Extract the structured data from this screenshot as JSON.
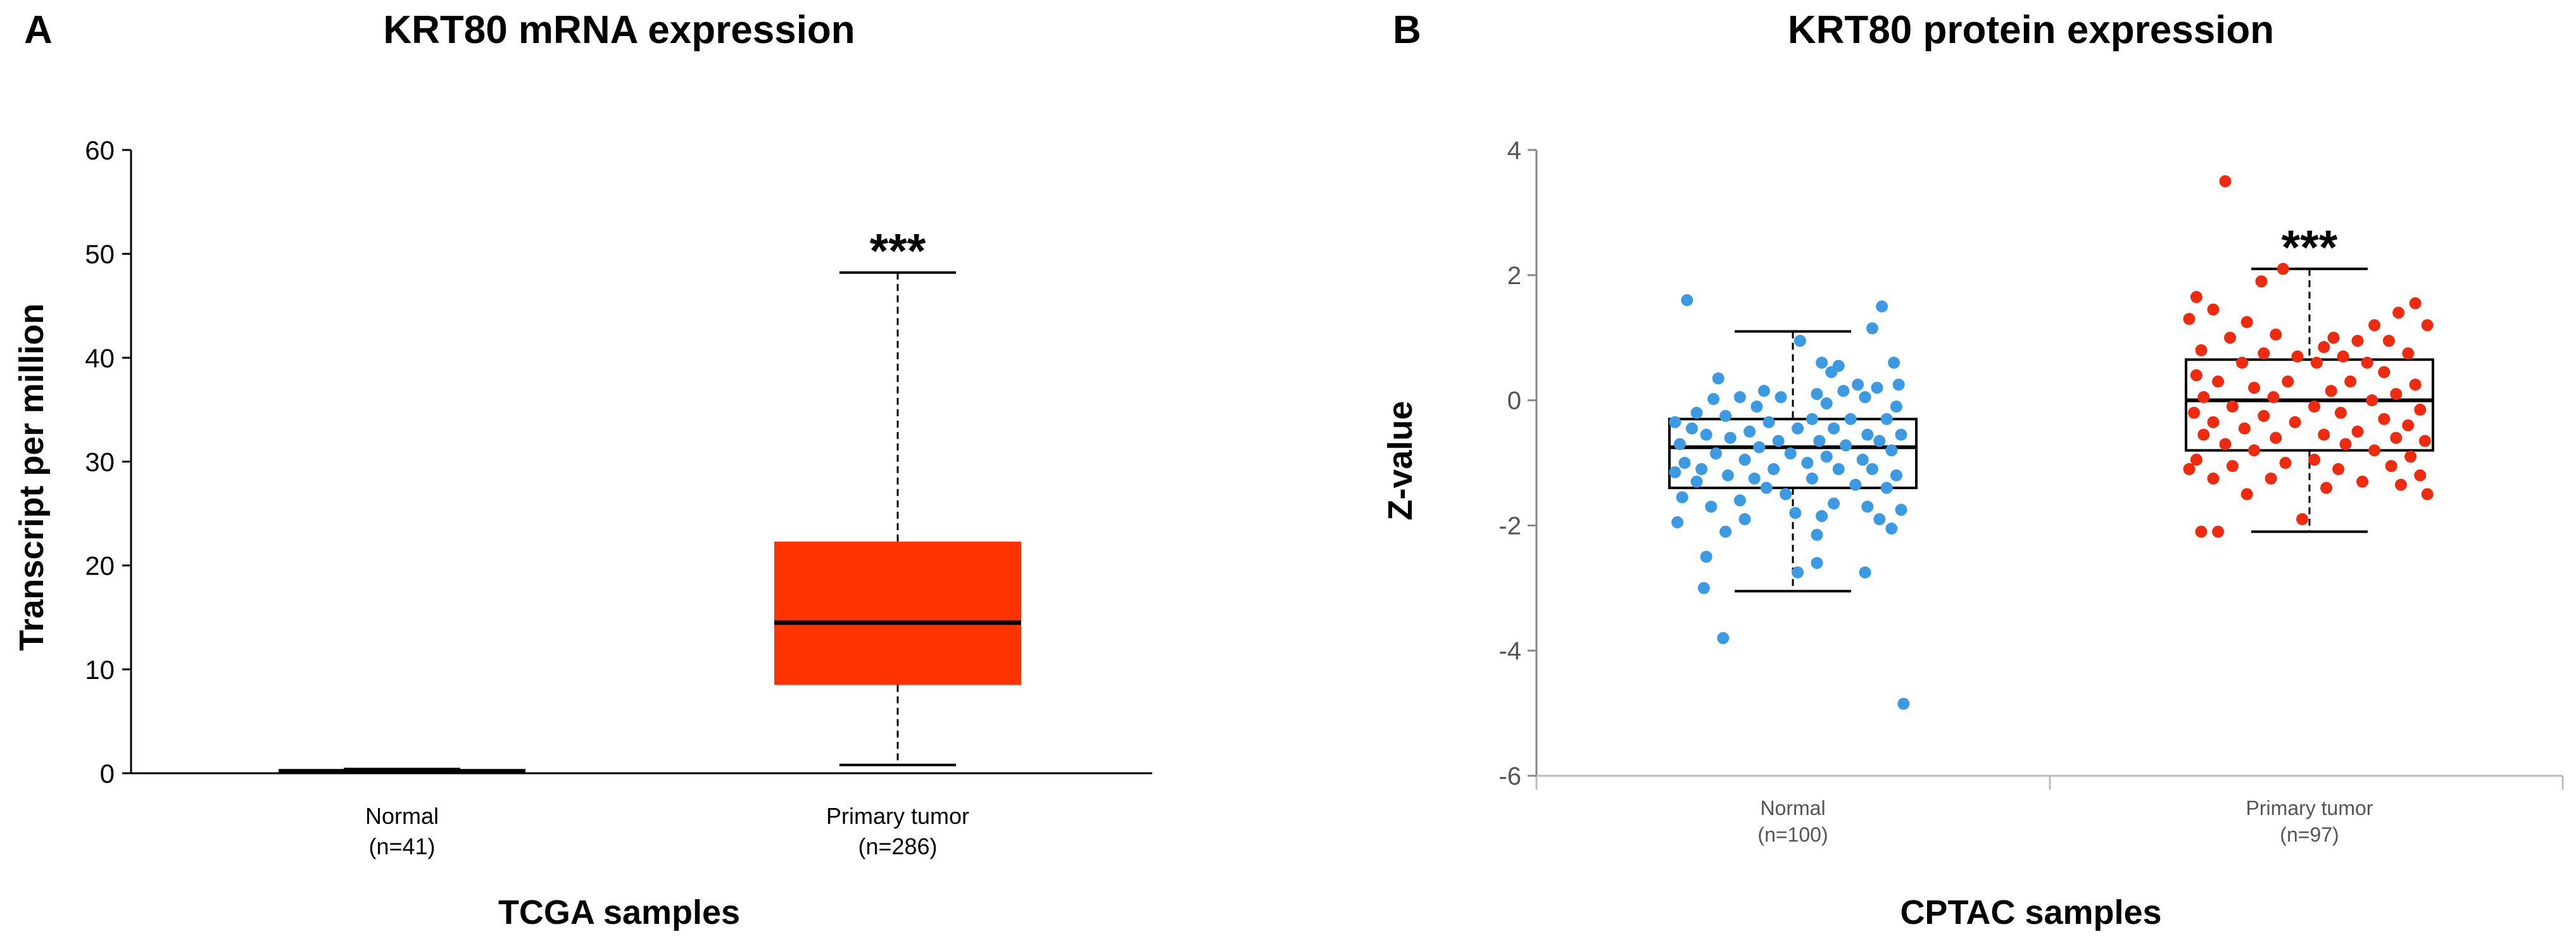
{
  "chart_data": [
    {
      "panel": "A",
      "type": "box",
      "title": "KRT80 mRNA expression",
      "xlabel": "TCGA samples",
      "ylabel": "Transcript per million",
      "ylim": [
        0,
        60
      ],
      "yticks": [
        0,
        10,
        20,
        30,
        40,
        50,
        60
      ],
      "box_color": "#ff3300",
      "series": [
        {
          "name": "Normal",
          "n": "(n=41)",
          "min": 0.1,
          "q1": 0.1,
          "median": 0.2,
          "q3": 0.3,
          "max": 0.4
        },
        {
          "name": "Primary tumor",
          "n": "(n=286)",
          "min": 0.8,
          "q1": 8.5,
          "median": 14.5,
          "q3": 22.3,
          "max": 48.2,
          "significance": "***"
        }
      ]
    },
    {
      "panel": "B",
      "type": "box_scatter",
      "title": "KRT80 protein expression",
      "xlabel": "CPTAC samples",
      "ylabel": "Z-value",
      "ylim": [
        -6,
        4
      ],
      "yticks": [
        -6,
        -4,
        -2,
        0,
        2,
        4
      ],
      "series": [
        {
          "name": "Normal",
          "n": "(n=100)",
          "color": "#3b9ae1",
          "min": -3.05,
          "q1": -1.4,
          "median": -0.75,
          "q3": -0.3,
          "max": 1.1,
          "points": [
            [
              -0.44,
              1.6
            ],
            [
              0.37,
              1.5
            ],
            [
              0.33,
              1.15
            ],
            [
              0.03,
              0.95
            ],
            [
              0.12,
              0.6
            ],
            [
              0.19,
              0.55
            ],
            [
              0.16,
              0.45
            ],
            [
              0.42,
              0.6
            ],
            [
              -0.31,
              0.35
            ],
            [
              0.27,
              0.25
            ],
            [
              0.44,
              0.25
            ],
            [
              0.35,
              0.2
            ],
            [
              0.21,
              0.15
            ],
            [
              -0.12,
              0.15
            ],
            [
              0.1,
              0.1
            ],
            [
              -0.22,
              0.05
            ],
            [
              -0.05,
              0.05
            ],
            [
              0.3,
              0.05
            ],
            [
              -0.33,
              0.02
            ],
            [
              0.14,
              -0.05
            ],
            [
              -0.15,
              -0.1
            ],
            [
              0.43,
              -0.1
            ],
            [
              -0.4,
              -0.2
            ],
            [
              -0.28,
              -0.25
            ],
            [
              0.24,
              -0.3
            ],
            [
              0.08,
              -0.3
            ],
            [
              -0.49,
              -0.35
            ],
            [
              -0.1,
              -0.35
            ],
            [
              0.39,
              -0.3
            ],
            [
              -0.42,
              -0.45
            ],
            [
              0.02,
              -0.45
            ],
            [
              0.17,
              -0.45
            ],
            [
              -0.18,
              -0.5
            ],
            [
              0.31,
              -0.55
            ],
            [
              -0.36,
              -0.55
            ],
            [
              -0.26,
              -0.6
            ],
            [
              0.45,
              -0.55
            ],
            [
              -0.06,
              -0.65
            ],
            [
              0.11,
              -0.65
            ],
            [
              0.36,
              -0.65
            ],
            [
              -0.47,
              -0.7
            ],
            [
              -0.14,
              -0.75
            ],
            [
              0.22,
              -0.72
            ],
            [
              0.41,
              -0.8
            ],
            [
              -0.32,
              -0.85
            ],
            [
              -0.01,
              -0.85
            ],
            [
              0.14,
              -0.9
            ],
            [
              -0.2,
              -0.95
            ],
            [
              0.29,
              -0.95
            ],
            [
              -0.45,
              -1.0
            ],
            [
              0.06,
              -1.0
            ],
            [
              -0.38,
              -1.1
            ],
            [
              -0.08,
              -1.1
            ],
            [
              0.19,
              -1.1
            ],
            [
              0.33,
              -1.1
            ],
            [
              -0.49,
              -1.15
            ],
            [
              0.43,
              -1.2
            ],
            [
              -0.27,
              -1.2
            ],
            [
              -0.16,
              -1.25
            ],
            [
              0.08,
              -1.25
            ],
            [
              -0.4,
              -1.3
            ],
            [
              0.26,
              -1.35
            ],
            [
              -0.11,
              -1.4
            ],
            [
              0.39,
              -1.4
            ],
            [
              -0.03,
              -1.5
            ],
            [
              -0.46,
              -1.55
            ],
            [
              -0.22,
              -1.6
            ],
            [
              0.17,
              -1.65
            ],
            [
              -0.34,
              -1.7
            ],
            [
              0.31,
              -1.7
            ],
            [
              0.45,
              -1.75
            ],
            [
              0.01,
              -1.8
            ],
            [
              -0.2,
              -1.9
            ],
            [
              0.12,
              -1.85
            ],
            [
              0.36,
              -1.9
            ],
            [
              -0.48,
              -1.95
            ],
            [
              -0.28,
              -2.1
            ],
            [
              0.41,
              -2.05
            ],
            [
              0.1,
              -2.15
            ],
            [
              -0.36,
              -2.5
            ],
            [
              0.1,
              -2.6
            ],
            [
              0.02,
              -2.75
            ],
            [
              0.3,
              -2.75
            ],
            [
              -0.37,
              -3.0
            ],
            [
              -0.29,
              -3.8
            ],
            [
              0.46,
              -4.85
            ]
          ]
        },
        {
          "name": "Primary tumor",
          "n": "(n=97)",
          "color": "#ee2b0f",
          "min": -2.1,
          "q1": -0.8,
          "median": 0.0,
          "q3": 0.65,
          "max": 2.1,
          "points": [
            [
              -0.35,
              3.5
            ],
            [
              -0.11,
              2.1
            ],
            [
              -0.47,
              1.65
            ],
            [
              -0.2,
              1.9
            ],
            [
              -0.4,
              1.45
            ],
            [
              -0.26,
              1.25
            ],
            [
              0.44,
              1.55
            ],
            [
              0.37,
              1.4
            ],
            [
              0.27,
              1.2
            ],
            [
              -0.5,
              1.3
            ],
            [
              0.49,
              1.2
            ],
            [
              -0.14,
              1.05
            ],
            [
              0.1,
              1.0
            ],
            [
              0.2,
              0.95
            ],
            [
              0.06,
              0.85
            ],
            [
              -0.33,
              1.0
            ],
            [
              -0.45,
              0.8
            ],
            [
              0.33,
              0.95
            ],
            [
              0.41,
              0.75
            ],
            [
              -0.05,
              0.7
            ],
            [
              -0.19,
              0.75
            ],
            [
              0.14,
              0.7
            ],
            [
              -0.28,
              0.6
            ],
            [
              0.03,
              0.6
            ],
            [
              0.24,
              0.6
            ],
            [
              -0.47,
              0.4
            ],
            [
              0.31,
              0.45
            ],
            [
              -0.38,
              0.3
            ],
            [
              0.17,
              0.3
            ],
            [
              -0.09,
              0.3
            ],
            [
              0.44,
              0.25
            ],
            [
              -0.23,
              0.2
            ],
            [
              0.09,
              0.15
            ],
            [
              0.36,
              0.1
            ],
            [
              -0.44,
              0.05
            ],
            [
              -0.15,
              0.05
            ],
            [
              0.26,
              0.0
            ],
            [
              -0.32,
              -0.1
            ],
            [
              0.02,
              -0.1
            ],
            [
              0.46,
              -0.15
            ],
            [
              -0.48,
              -0.2
            ],
            [
              0.13,
              -0.2
            ],
            [
              -0.19,
              -0.25
            ],
            [
              0.31,
              -0.3
            ],
            [
              -0.4,
              -0.35
            ],
            [
              -0.06,
              -0.35
            ],
            [
              0.41,
              -0.4
            ],
            [
              -0.27,
              -0.45
            ],
            [
              0.2,
              -0.5
            ],
            [
              -0.44,
              -0.55
            ],
            [
              0.06,
              -0.55
            ],
            [
              0.36,
              -0.6
            ],
            [
              -0.14,
              -0.6
            ],
            [
              -0.35,
              -0.7
            ],
            [
              0.48,
              -0.65
            ],
            [
              0.15,
              -0.7
            ],
            [
              -0.23,
              -0.8
            ],
            [
              0.27,
              -0.8
            ],
            [
              -0.47,
              -0.95
            ],
            [
              0.02,
              -0.95
            ],
            [
              0.42,
              -0.9
            ],
            [
              -0.1,
              -1.0
            ],
            [
              -0.32,
              -1.05
            ],
            [
              0.34,
              -1.05
            ],
            [
              0.12,
              -1.1
            ],
            [
              -0.5,
              -1.1
            ],
            [
              0.46,
              -1.2
            ],
            [
              -0.4,
              -1.25
            ],
            [
              -0.16,
              -1.25
            ],
            [
              0.22,
              -1.3
            ],
            [
              0.07,
              -1.4
            ],
            [
              0.38,
              -1.35
            ],
            [
              -0.26,
              -1.5
            ],
            [
              0.49,
              -1.5
            ],
            [
              -0.45,
              -2.1
            ],
            [
              -0.38,
              -2.1
            ],
            [
              -0.03,
              -1.9
            ]
          ],
          "significance": "***"
        }
      ]
    }
  ]
}
